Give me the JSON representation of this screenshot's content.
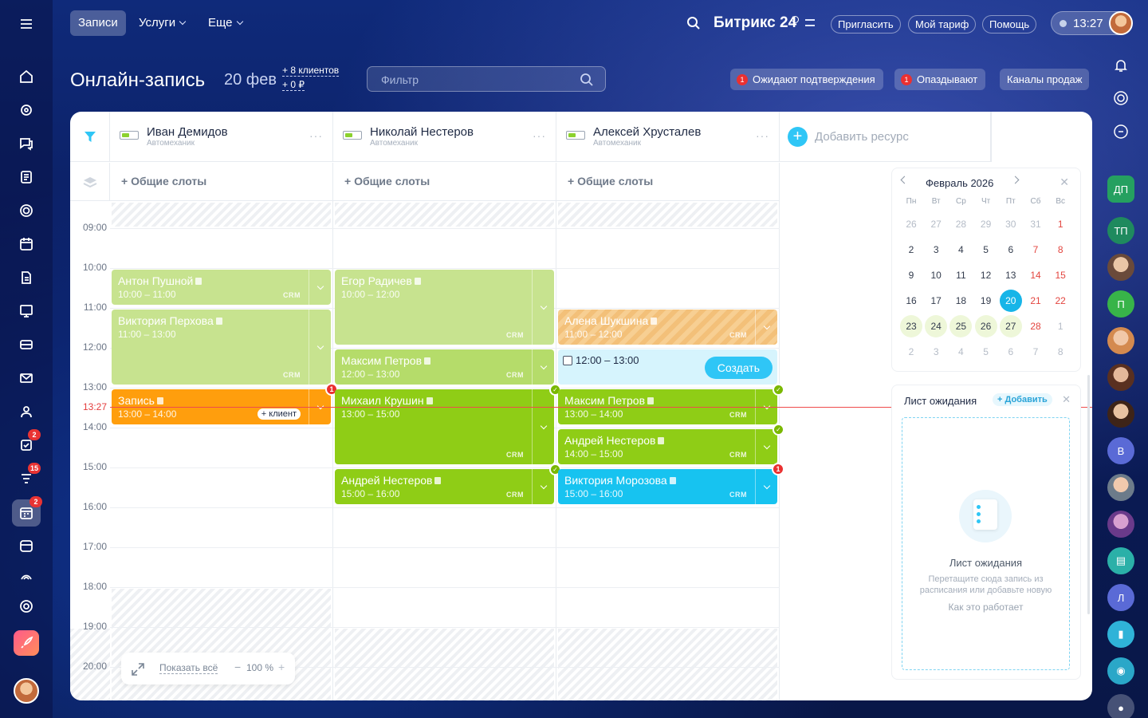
{
  "topbar": {
    "tabs": [
      {
        "label": "Записи"
      },
      {
        "label": "Услуги"
      },
      {
        "label": "Еще"
      }
    ],
    "brand": "Битрикс 24",
    "invite": "Пригласить",
    "plan": "Мой тариф",
    "help": "Помощь",
    "time": "13:27"
  },
  "header": {
    "title": "Онлайн-запись",
    "date": "20 фев",
    "clients": "+ 8 клиентов",
    "revenue": "+ 0 ₽",
    "filter_placeholder": "Фильтр",
    "pending": {
      "count": "1",
      "label": "Ожидают подтверждения"
    },
    "late": {
      "count": "1",
      "label": "Опаздывают"
    },
    "channels": "Каналы продаж"
  },
  "resources": [
    {
      "name": "Иван Демидов",
      "role": "Автомеханик",
      "slots": "+ Общие слоты"
    },
    {
      "name": "Николай Нестеров",
      "role": "Автомеханик",
      "slots": "+ Общие слоты"
    },
    {
      "name": "Алексей Хрусталев",
      "role": "Автомеханик",
      "slots": "+ Общие слоты"
    }
  ],
  "add_resource": "Добавить ресурс",
  "hours": [
    "09:00",
    "10:00",
    "11:00",
    "12:00",
    "13:00",
    "14:00",
    "15:00",
    "16:00",
    "17:00",
    "18:00",
    "19:00",
    "20:00"
  ],
  "now_time": "13:27",
  "events": [
    {
      "title": "Антон Пушной",
      "time": "10:00 – 11:00",
      "tag": "CRM"
    },
    {
      "title": "Виктория Перхова",
      "time": "11:00 – 13:00",
      "tag": "CRM"
    },
    {
      "title": "Запись",
      "time": "13:00 – 14:00",
      "client_btn": "+ клиент"
    },
    {
      "title": "Егор Радичев",
      "time": "10:00 – 12:00",
      "tag": "CRM"
    },
    {
      "title": "Максим Петров",
      "time": "12:00 – 13:00",
      "tag": "CRM"
    },
    {
      "title": "Михаил Крушин",
      "time": "13:00 – 15:00",
      "tag": "CRM"
    },
    {
      "title": "Андрей Нестеров",
      "time": "15:00 – 16:00",
      "tag": "CRM"
    },
    {
      "title": "Алена Шукшина",
      "time": "11:00 – 12:00",
      "tag": "CRM"
    },
    {
      "title": "Максим Петров",
      "time": "13:00 – 14:00",
      "tag": "CRM"
    },
    {
      "title": "Андрей Нестеров",
      "time": "14:00 – 15:00",
      "tag": "CRM"
    },
    {
      "title": "Виктория Морозова",
      "time": "15:00 – 16:00",
      "tag": "CRM"
    }
  ],
  "new_slot": {
    "time": "12:00 – 13:00",
    "button": "Создать"
  },
  "zoom": {
    "show_all": "Показать всё",
    "level": "100 %",
    "minus": "−",
    "plus": "+"
  },
  "calendar": {
    "month": "Февраль 2026",
    "weekdays": [
      "Пн",
      "Вт",
      "Ср",
      "Чт",
      "Пт",
      "Сб",
      "Вс"
    ],
    "weeks": [
      [
        "26",
        "27",
        "28",
        "29",
        "30",
        "31",
        "1"
      ],
      [
        "2",
        "3",
        "4",
        "5",
        "6",
        "7",
        "8"
      ],
      [
        "9",
        "10",
        "11",
        "12",
        "13",
        "14",
        "15"
      ],
      [
        "16",
        "17",
        "18",
        "19",
        "20",
        "21",
        "22"
      ],
      [
        "23",
        "24",
        "25",
        "26",
        "27",
        "28",
        "1"
      ],
      [
        "2",
        "3",
        "4",
        "5",
        "6",
        "7",
        "8"
      ]
    ],
    "selected": "20"
  },
  "waitlist": {
    "title": "Лист ожидания",
    "add": "+ Добавить",
    "empty_title": "Лист ожидания",
    "empty_text": "Перетащите сюда запись из расписания или добавьте новую",
    "how": "Как это работает"
  },
  "leftbar_badges": {
    "tasks": "2",
    "feed": "15",
    "booking": "2"
  },
  "right_rail": {
    "dp": "ДП",
    "tp": "ТП",
    "p": "П",
    "v": "В",
    "l": "Л"
  },
  "colors": {
    "green_light": "#c7e38f",
    "green": "#8fcd16",
    "orange": "#ff9e0d",
    "blue": "#17c3f0",
    "accent": "#2fc6f6"
  }
}
